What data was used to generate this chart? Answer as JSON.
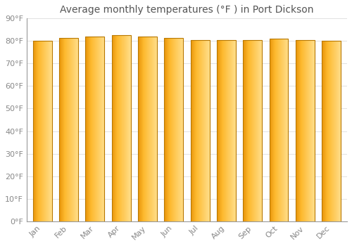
{
  "title": "Average monthly temperatures (°F ) in Port Dickson",
  "months": [
    "Jan",
    "Feb",
    "Mar",
    "Apr",
    "May",
    "Jun",
    "Jul",
    "Aug",
    "Sep",
    "Oct",
    "Nov",
    "Dec"
  ],
  "values": [
    80,
    81.5,
    82,
    82.5,
    82,
    81.5,
    80.5,
    80.5,
    80.5,
    81,
    80.5,
    80
  ],
  "ylim": [
    0,
    90
  ],
  "yticks": [
    0,
    10,
    20,
    30,
    40,
    50,
    60,
    70,
    80,
    90
  ],
  "ytick_labels": [
    "0°F",
    "10°F",
    "20°F",
    "30°F",
    "40°F",
    "50°F",
    "60°F",
    "70°F",
    "80°F",
    "90°F"
  ],
  "bar_color_left": "#E8950A",
  "bar_color_mid": "#FDB92E",
  "bar_color_right": "#FFDD88",
  "bar_edge_color": "#B87800",
  "background_color": "#FFFFFF",
  "plot_bg_color": "#FFFFFF",
  "grid_color": "#DDDDDD",
  "title_fontsize": 10,
  "tick_fontsize": 8,
  "title_color": "#555555",
  "tick_color": "#888888",
  "bar_width": 0.72
}
